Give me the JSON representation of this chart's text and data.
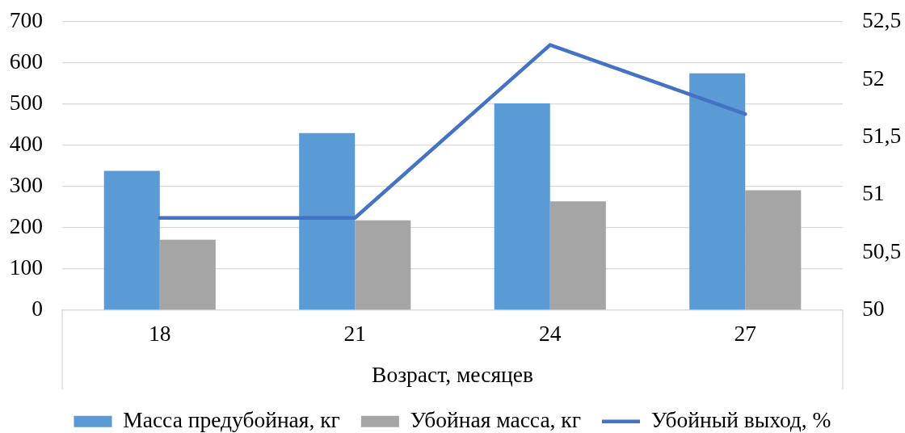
{
  "chart_data": {
    "type": "bar",
    "categories": [
      "18",
      "21",
      "24",
      "27"
    ],
    "xlabel": "Возраст, месяцев",
    "series": [
      {
        "name": "Масса предубойная, кг",
        "color": "#5b9bd5",
        "values": [
          338,
          430,
          502,
          575
        ]
      },
      {
        "name": "Убойная масса, кг",
        "color": "#a5a5a5",
        "values": [
          171,
          218,
          264,
          291
        ]
      },
      {
        "name": "Убойный выход, %",
        "type": "line",
        "axis": "y2",
        "color": "#4472c4",
        "values": [
          50.8,
          50.8,
          52.3,
          51.7
        ]
      }
    ],
    "ylim": [
      0,
      700
    ],
    "yticks": [
      0,
      100,
      200,
      300,
      400,
      500,
      600,
      700
    ],
    "y2lim": [
      50,
      52.5
    ],
    "y2ticks": [
      50,
      {
        "value": 50.5,
        "label": "50,5"
      },
      51,
      {
        "value": 51.5,
        "label": "51,5"
      },
      52,
      {
        "value": 52.5,
        "label": "52,5"
      }
    ],
    "grid": "y",
    "legend": "bottom",
    "marker": "none",
    "line_style": "solid"
  }
}
